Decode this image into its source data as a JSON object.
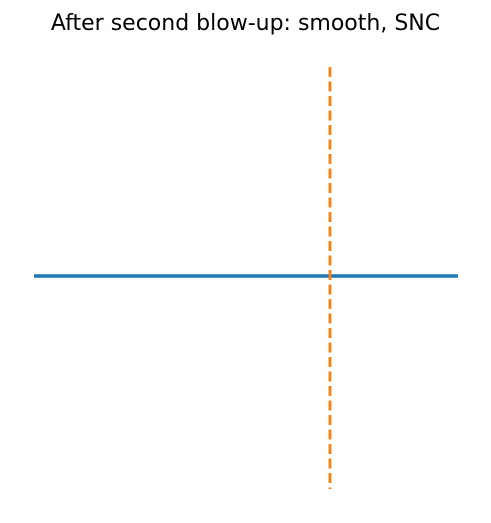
{
  "figure": {
    "title": "After second blow-up: smooth, SNC"
  },
  "diagram": {
    "curves": [
      {
        "kind": "horizontal-line",
        "style": "solid",
        "color": "#1f77b4"
      },
      {
        "kind": "vertical-line",
        "style": "dashed",
        "color": "#ff7f0e"
      }
    ],
    "axes_visible": false
  }
}
